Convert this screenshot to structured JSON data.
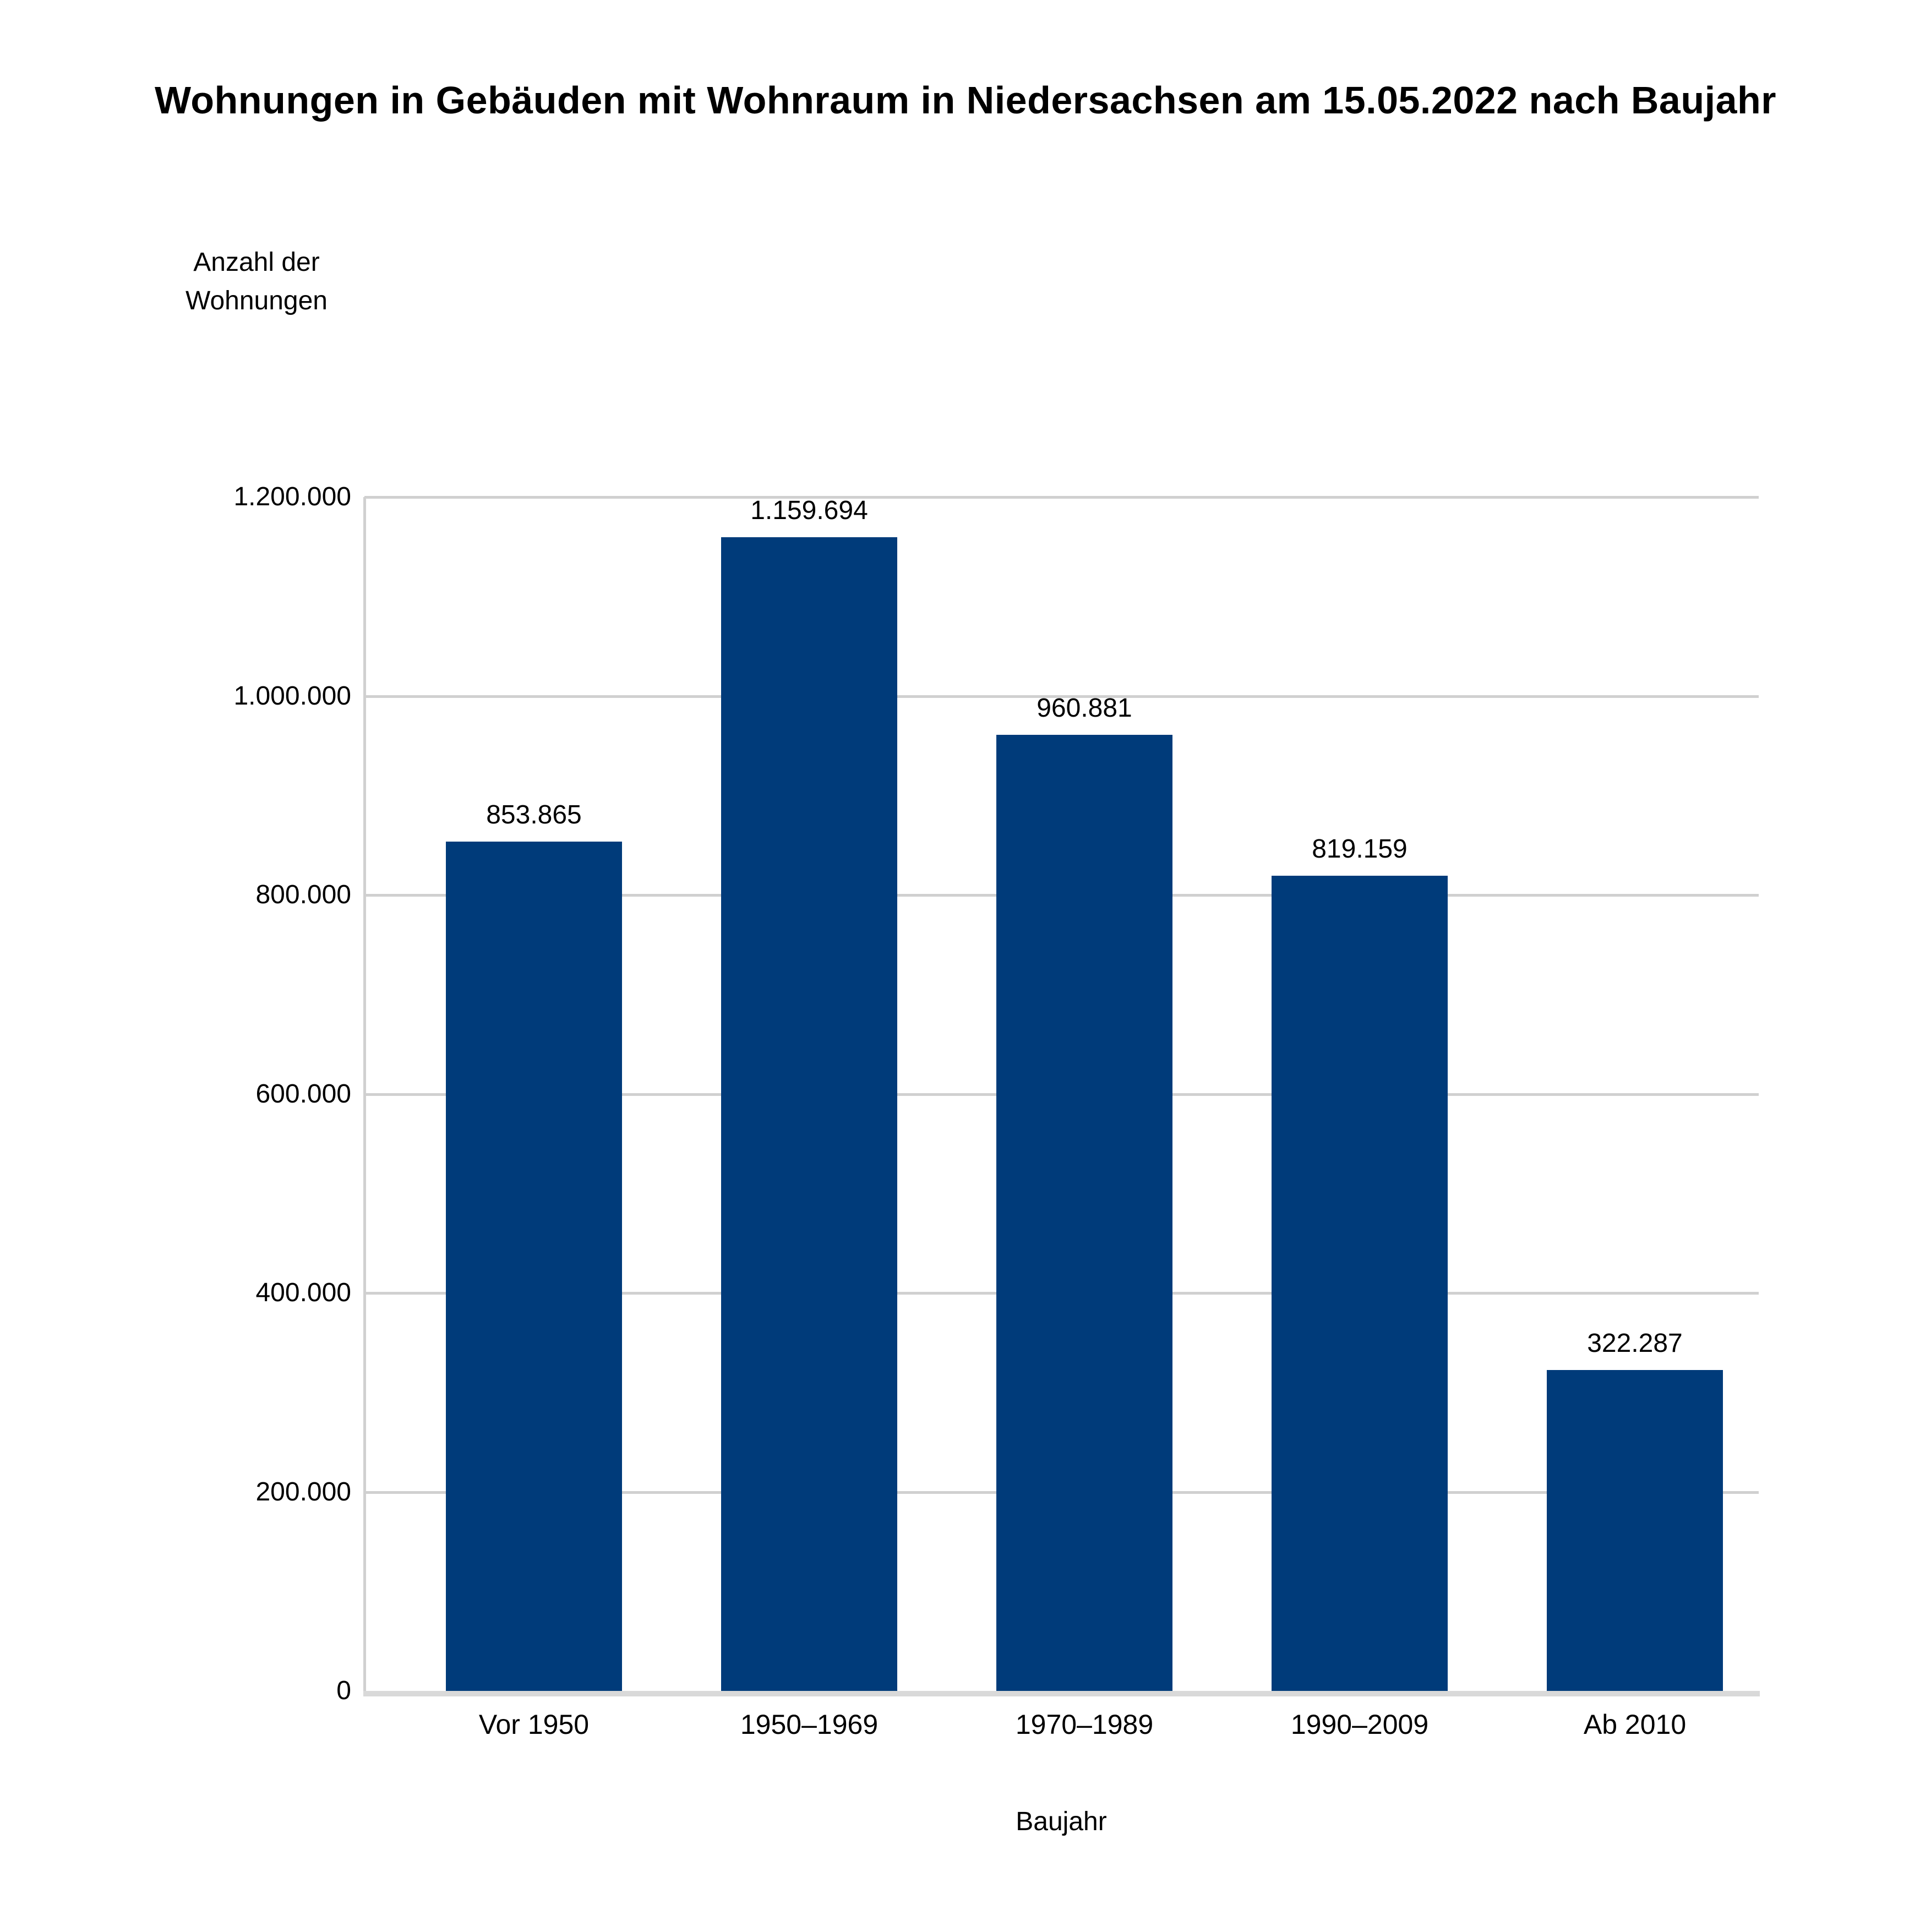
{
  "chart_data": {
    "type": "bar",
    "title": "Wohnungen in Gebäuden mit Wohnraum in Niedersachsen am 15.05.2022 nach Baujahr",
    "categories": [
      "Vor 1950",
      "1950–1969",
      "1970–1989",
      "1990–2009",
      "Ab 2010"
    ],
    "values": [
      853865,
      1159694,
      960881,
      819159,
      322287
    ],
    "value_labels": [
      "853.865",
      "1.159.694",
      "960.881",
      "819.159",
      "322.287"
    ],
    "xlabel": "Baujahr",
    "ylabel": "Anzahl der\nWohnungen",
    "ylim": [
      0,
      1200000
    ],
    "ytick_step": 200000,
    "ytick_labels": [
      "0",
      "200.000",
      "400.000",
      "600.000",
      "800.000",
      "1.000.000",
      "1.200.000"
    ],
    "grid": true,
    "legend": false,
    "colors": {
      "bar": "#003b7a",
      "gridline": "#d0d0d0",
      "axis_line": "#d9d9d9",
      "text": "#000000",
      "background": "#ffffff"
    }
  }
}
